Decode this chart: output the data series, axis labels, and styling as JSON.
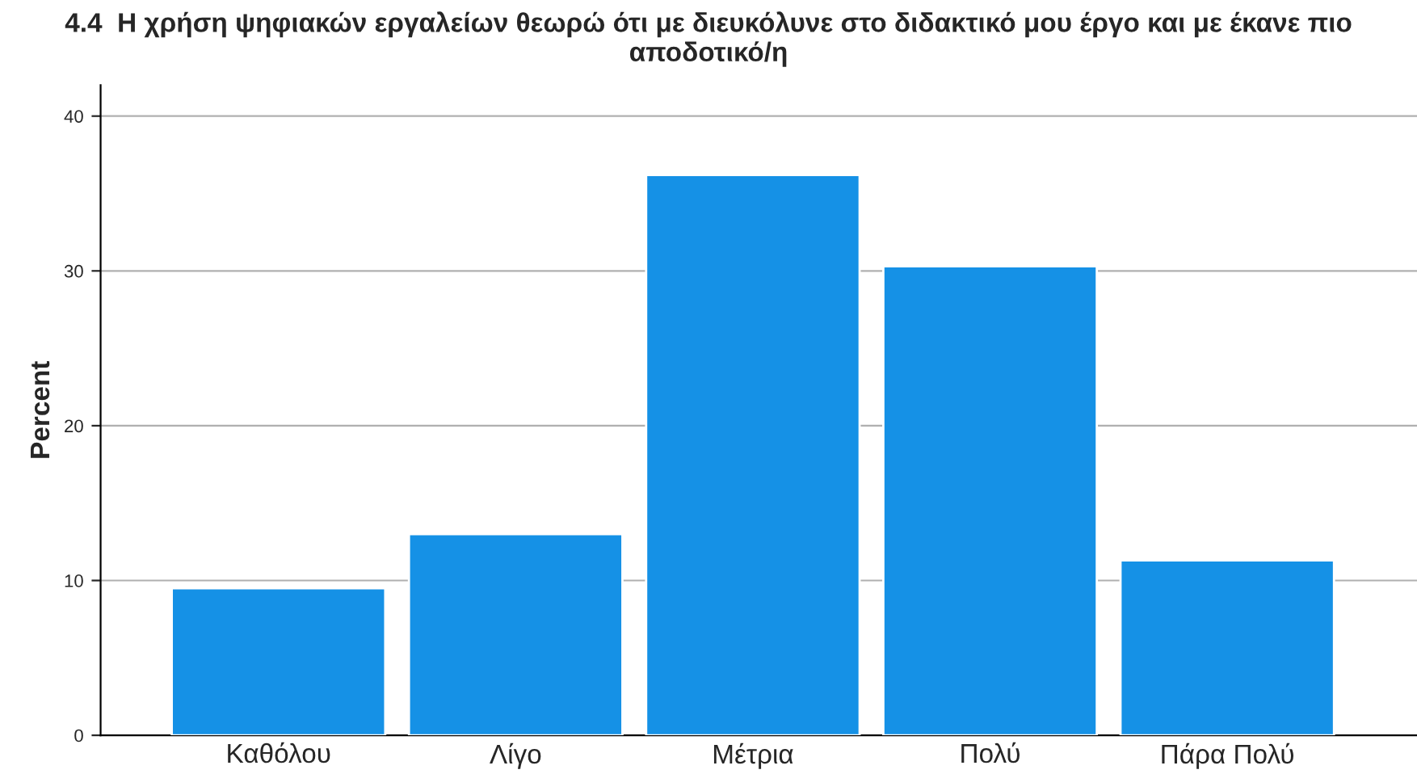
{
  "chart_data": {
    "type": "bar",
    "title": "4.4  Η χρήση ψηφιακών εργαλείων θεωρώ ότι με διευκόλυνε στο διδακτικό μου έργο και με έκανε πιο αποδοτικό/η",
    "ylabel": "Percent",
    "categories": [
      "Καθόλου",
      "Λίγο",
      "Μέτρια",
      "Πολύ",
      "Πάρα Πολύ"
    ],
    "values": [
      9.5,
      13.0,
      36.2,
      30.3,
      11.3
    ],
    "color": "#1591e6",
    "ylim": [
      0,
      42
    ],
    "yticks": [
      0,
      10,
      20,
      30,
      40
    ],
    "grid": "y"
  }
}
